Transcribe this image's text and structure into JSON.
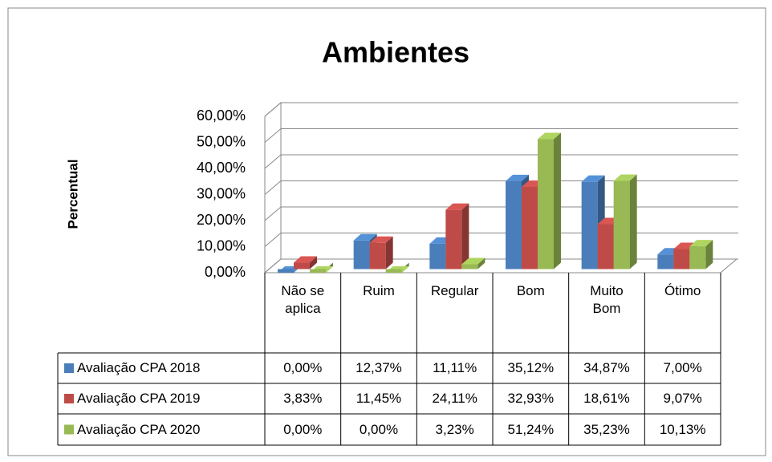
{
  "chart_data": {
    "type": "bar3d",
    "title": "Ambientes",
    "y_label": "Percentual",
    "categories": [
      "Não se aplica",
      "Ruim",
      "Regular",
      "Bom",
      "Muito Bom",
      "Ótimo"
    ],
    "series": [
      {
        "name": "Avaliação CPA 2018",
        "color": "#4a7ebb",
        "values": [
          0,
          12.37,
          11.11,
          35.12,
          34.87,
          7.0
        ],
        "value_labels": [
          "0,00%",
          "12,37%",
          "11,11%",
          "35,12%",
          "34,87%",
          "7,00%"
        ]
      },
      {
        "name": "Avaliação CPA 2019",
        "color": "#be4b48",
        "values": [
          3.83,
          11.45,
          24.11,
          32.93,
          18.61,
          9.07
        ],
        "value_labels": [
          "3,83%",
          "11,45%",
          "24,11%",
          "32,93%",
          "18,61%",
          "9,07%"
        ]
      },
      {
        "name": "Avaliação CPA 2020",
        "color": "#98b954",
        "values": [
          0,
          0,
          3.23,
          51.24,
          35.23,
          10.13
        ],
        "value_labels": [
          "0,00%",
          "0,00%",
          "3,23%",
          "51,24%",
          "35,23%",
          "10,13%"
        ]
      }
    ],
    "ylim": [
      0,
      60
    ],
    "yticks": [
      {
        "value": 0,
        "label": "0,00%"
      },
      {
        "value": 10,
        "label": "10,00%"
      },
      {
        "value": 20,
        "label": "20,00%"
      },
      {
        "value": 30,
        "label": "30,00%"
      },
      {
        "value": 40,
        "label": "40,00%"
      },
      {
        "value": 50,
        "label": "50,00%"
      },
      {
        "value": 60,
        "label": "60,00%"
      }
    ],
    "grid": true
  }
}
